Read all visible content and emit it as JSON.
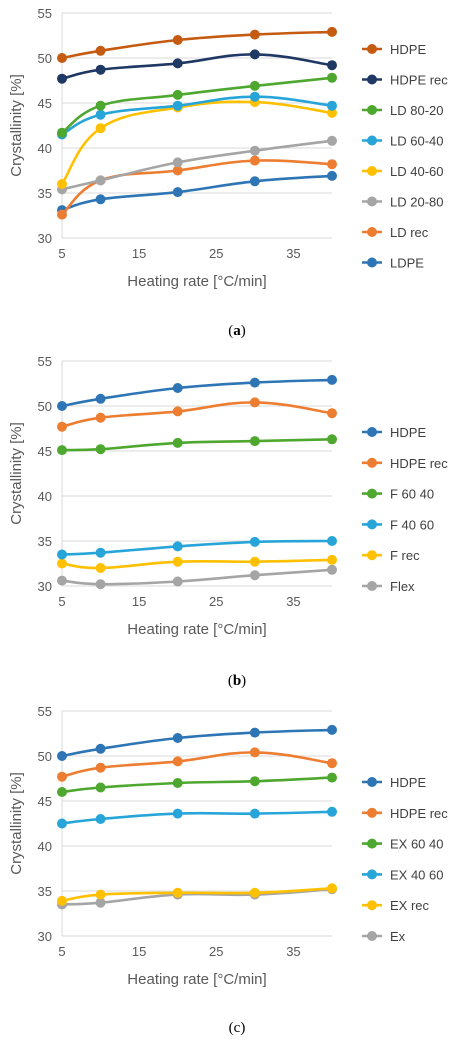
{
  "captions": [
    {
      "open": "(",
      "letter": "a",
      "close": ")",
      "bold": true
    },
    {
      "open": "(",
      "letter": "b",
      "close": ")",
      "bold": true
    },
    {
      "open": "(",
      "letter": "c",
      "close": ")",
      "bold": false
    }
  ],
  "chart_data": [
    {
      "type": "line",
      "xlabel": "Heating rate [°C/min]",
      "ylabel": "Crystallinity [%]",
      "x": [
        5,
        10,
        20,
        30,
        40
      ],
      "xlim": [
        5,
        40
      ],
      "xticks": [
        5,
        15,
        25,
        35
      ],
      "ylim": [
        30,
        55
      ],
      "yticks": [
        30,
        35,
        40,
        45,
        50,
        55
      ],
      "grid": true,
      "legend": "right",
      "series": [
        {
          "name": "HDPE",
          "color": "#c55a11",
          "values": [
            50.0,
            50.8,
            52.0,
            52.6,
            52.9
          ]
        },
        {
          "name": "HDPE rec",
          "color": "#1f3864",
          "values": [
            47.7,
            48.7,
            49.4,
            50.4,
            49.2
          ]
        },
        {
          "name": "LD 80-20",
          "color": "#4ea72e",
          "values": [
            41.7,
            44.7,
            45.9,
            46.9,
            47.8
          ]
        },
        {
          "name": "LD 60-40",
          "color": "#27a5d8",
          "values": [
            41.5,
            43.7,
            44.7,
            45.7,
            44.7
          ]
        },
        {
          "name": "LD 40-60",
          "color": "#ffc000",
          "values": [
            36.0,
            42.2,
            44.5,
            45.1,
            43.9
          ]
        },
        {
          "name": "LD 20-80",
          "color": "#a5a5a5",
          "values": [
            35.4,
            36.4,
            38.4,
            39.7,
            40.8
          ]
        },
        {
          "name": "LD rec",
          "color": "#ed7d31",
          "values": [
            32.6,
            36.4,
            37.5,
            38.6,
            38.2
          ]
        },
        {
          "name": "LDPE",
          "color": "#2e75b6",
          "values": [
            33.1,
            34.3,
            35.1,
            36.3,
            36.9
          ]
        }
      ]
    },
    {
      "type": "line",
      "xlabel": "Heating rate [°C/min]",
      "ylabel": "Crystallinity [%]",
      "x": [
        5,
        10,
        20,
        30,
        40
      ],
      "xlim": [
        5,
        40
      ],
      "xticks": [
        5,
        15,
        25,
        35
      ],
      "ylim": [
        30,
        55
      ],
      "yticks": [
        30,
        35,
        40,
        45,
        50,
        55
      ],
      "grid": true,
      "legend": "right",
      "series": [
        {
          "name": "HDPE",
          "color": "#2e75b6",
          "values": [
            50.0,
            50.8,
            52.0,
            52.6,
            52.9
          ]
        },
        {
          "name": "HDPE rec",
          "color": "#ed7d31",
          "values": [
            47.7,
            48.7,
            49.4,
            50.4,
            49.2
          ]
        },
        {
          "name": "F 60 40",
          "color": "#4ea72e",
          "values": [
            45.1,
            45.2,
            45.9,
            46.1,
            46.3
          ]
        },
        {
          "name": "F 40 60",
          "color": "#27a5d8",
          "values": [
            33.5,
            33.7,
            34.4,
            34.9,
            35.0
          ]
        },
        {
          "name": "F rec",
          "color": "#ffc000",
          "values": [
            32.5,
            32.0,
            32.7,
            32.7,
            32.9
          ]
        },
        {
          "name": "Flex",
          "color": "#a5a5a5",
          "values": [
            30.6,
            30.2,
            30.5,
            31.2,
            31.8
          ]
        }
      ]
    },
    {
      "type": "line",
      "xlabel": "Heating rate [°C/min]",
      "ylabel": "Crystallinity [%]",
      "x": [
        5,
        10,
        20,
        30,
        40
      ],
      "xlim": [
        5,
        40
      ],
      "xticks": [
        5,
        15,
        25,
        35
      ],
      "ylim": [
        30,
        55
      ],
      "yticks": [
        30,
        35,
        40,
        45,
        50,
        55
      ],
      "grid": true,
      "legend": "right",
      "series": [
        {
          "name": "HDPE",
          "color": "#2e75b6",
          "values": [
            50.0,
            50.8,
            52.0,
            52.6,
            52.9
          ]
        },
        {
          "name": "HDPE rec",
          "color": "#ed7d31",
          "values": [
            47.7,
            48.7,
            49.4,
            50.4,
            49.2
          ]
        },
        {
          "name": "EX 60 40",
          "color": "#4ea72e",
          "values": [
            46.0,
            46.5,
            47.0,
            47.2,
            47.6
          ]
        },
        {
          "name": "EX 40 60",
          "color": "#27a5d8",
          "values": [
            42.5,
            43.0,
            43.6,
            43.6,
            43.8
          ]
        },
        {
          "name": "EX rec",
          "color": "#ffc000",
          "values": [
            33.9,
            34.6,
            34.8,
            34.8,
            35.3
          ]
        },
        {
          "name": "Ex",
          "color": "#a5a5a5",
          "values": [
            33.5,
            33.7,
            34.6,
            34.6,
            35.2
          ]
        }
      ]
    }
  ]
}
